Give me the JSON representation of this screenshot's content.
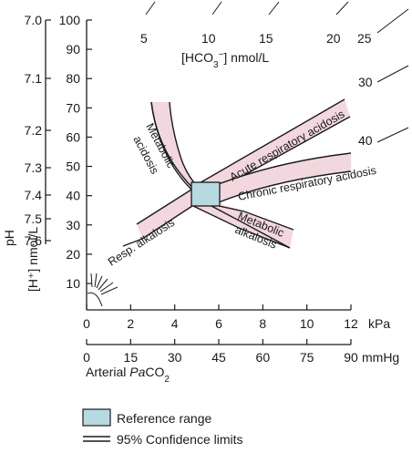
{
  "chart_data": {
    "type": "diagram",
    "y_axis_h": {
      "label": "[H⁺] nmol/L",
      "ticks": [
        "100",
        "90",
        "80",
        "70",
        "60",
        "50",
        "40",
        "30",
        "20",
        "10"
      ]
    },
    "y_axis_ph": {
      "label": "pH",
      "ticks": [
        "7.0",
        "7.1",
        "7.2",
        "7.3",
        "7.4",
        "7.5",
        "7.6"
      ]
    },
    "x_axis_kpa": {
      "ticks": [
        "0",
        "2",
        "4",
        "6",
        "8",
        "10",
        "12"
      ],
      "unit": "kPa"
    },
    "x_axis_mmhg": {
      "ticks": [
        "0",
        "15",
        "30",
        "45",
        "60",
        "75",
        "90"
      ],
      "unit": "mmHg"
    },
    "x_label_prefix": "Arterial ",
    "x_label_italic": "Pa",
    "x_label_suffix": "CO",
    "x_label_sub": "2",
    "isopleth_title_pre": "[HCO",
    "isopleth_title_sub": "3",
    "isopleth_title_sup": "−",
    "isopleth_title_post": "] nmol/L",
    "isopleths": [
      "5",
      "10",
      "15",
      "20",
      "25",
      "30",
      "40"
    ],
    "bands": [
      {
        "name": "Metabolic acidosis",
        "line1": "Metabolic",
        "line2": "acidosis"
      },
      {
        "name": "Acute respiratory acidosis",
        "line1": "Acute respiratory acidosis"
      },
      {
        "name": "Chronic respiratory acidosis",
        "line1": "Chronic respiratory acidosis"
      },
      {
        "name": "Resp. alkalosis",
        "line1": "Resp. alkalosis"
      },
      {
        "name": "Metabolic alkalosis",
        "line1": "Metabolic",
        "line2": "alkalosis"
      }
    ],
    "reference_range": {
      "h_range": [
        35,
        45
      ],
      "pco2_kpa_range": [
        4.7,
        6.0
      ]
    },
    "legend": {
      "reference": "Reference range",
      "confidence": "95% Confidence limits"
    },
    "colors": {
      "band_fill": "#f2d7df",
      "band_stroke": "#1a1a1a",
      "reference_fill": "#b7d9e0"
    }
  }
}
